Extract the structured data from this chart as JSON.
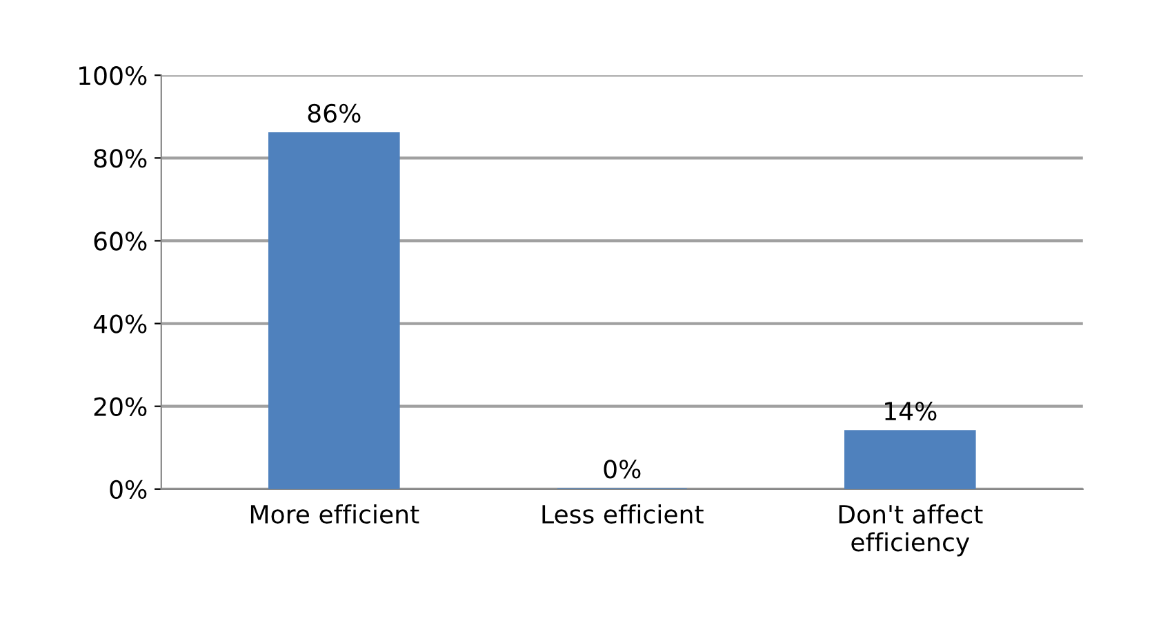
{
  "chart_data": {
    "type": "bar",
    "categories": [
      "More efficient",
      "Less efficient",
      "Don't affect\nefficiency"
    ],
    "values": [
      86,
      0,
      14
    ],
    "value_labels": [
      "86%",
      "0%",
      "14%"
    ],
    "color": "#4f81bd",
    "ylim": [
      0,
      100
    ],
    "yticks": [
      {
        "value": 0,
        "label": "0%"
      },
      {
        "value": 20,
        "label": "20%"
      },
      {
        "value": 40,
        "label": "40%"
      },
      {
        "value": 60,
        "label": "60%"
      },
      {
        "value": 80,
        "label": "80%"
      },
      {
        "value": 100,
        "label": "100%"
      }
    ],
    "grid": "y"
  }
}
